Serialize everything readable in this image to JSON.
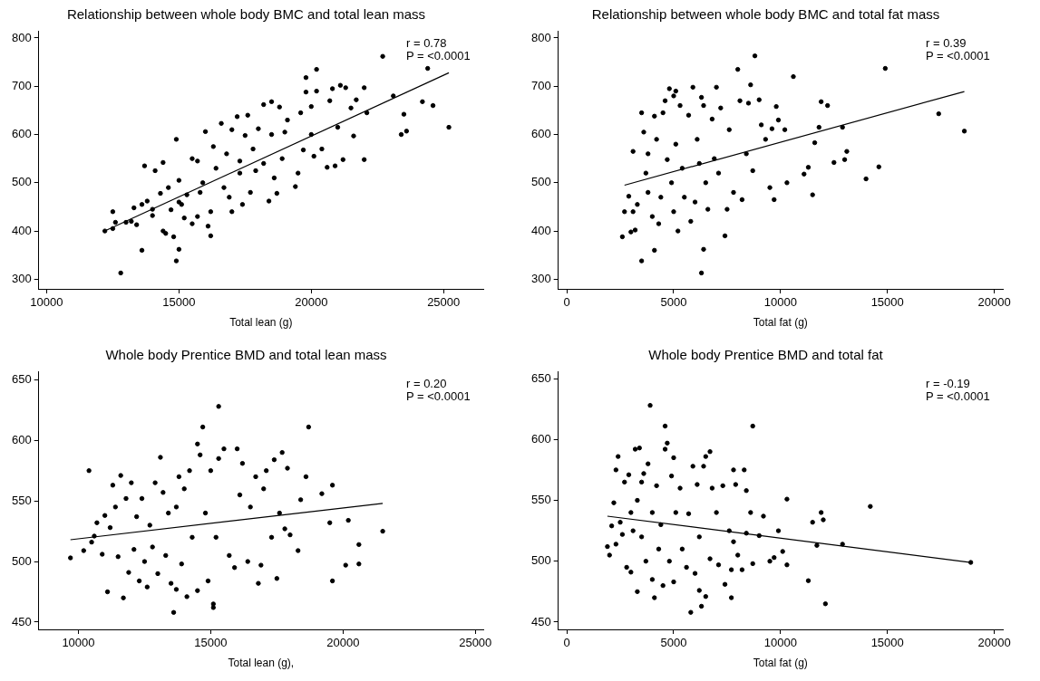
{
  "chart_data": [
    {
      "type": "scatter",
      "title": "Relationship between whole body BMC and total lean mass",
      "xlabel": "Total lean (g)",
      "xlim": [
        9700,
        26500
      ],
      "xticks": [
        10000,
        15000,
        20000,
        25000
      ],
      "ylim": [
        280,
        815
      ],
      "yticks": [
        300,
        400,
        500,
        600,
        700,
        800
      ],
      "marker": "circle",
      "annotations": [
        "r = 0.78",
        "P = <0.0001"
      ],
      "series": [
        {
          "color": "#000000",
          "x": [
            12200,
            12500,
            12500,
            12600,
            12800,
            13000,
            13200,
            13300,
            13400,
            13600,
            13700,
            13600,
            13800,
            14000,
            14000,
            14100,
            14300,
            14400,
            14400,
            14500,
            14600,
            14700,
            14800,
            14900,
            15000,
            14900,
            15000,
            15000,
            15100,
            15200,
            15300,
            15500,
            15500,
            15700,
            15700,
            15800,
            15900,
            16000,
            16100,
            16200,
            16300,
            16200,
            16400,
            16600,
            16700,
            16800,
            16900,
            17000,
            17000,
            17200,
            17300,
            17300,
            17400,
            17500,
            17600,
            17700,
            17800,
            17900,
            18000,
            18200,
            18200,
            18400,
            18500,
            18500,
            18600,
            18700,
            18800,
            18900,
            19000,
            19100,
            19400,
            19500,
            19600,
            19700,
            19800,
            19800,
            20000,
            20000,
            20100,
            20200,
            20200,
            20400,
            20600,
            20700,
            20800,
            20900,
            21000,
            21100,
            21200,
            21300,
            21500,
            21600,
            21700,
            22000,
            22000,
            22100,
            22700,
            23100,
            23400,
            23500,
            23600,
            24200,
            24400,
            24600,
            25200
          ],
          "values": [
            400,
            405,
            440,
            418,
            313,
            418,
            420,
            448,
            413,
            360,
            535,
            455,
            462,
            445,
            432,
            525,
            478,
            542,
            400,
            395,
            490,
            444,
            388,
            590,
            362,
            338,
            505,
            460,
            455,
            427,
            475,
            415,
            550,
            430,
            545,
            480,
            500,
            606,
            410,
            390,
            575,
            440,
            530,
            623,
            490,
            560,
            470,
            440,
            610,
            637,
            520,
            545,
            455,
            598,
            640,
            480,
            570,
            525,
            612,
            540,
            662,
            462,
            600,
            668,
            510,
            478,
            657,
            550,
            605,
            630,
            492,
            520,
            645,
            568,
            688,
            718,
            658,
            600,
            555,
            735,
            690,
            570,
            532,
            670,
            695,
            535,
            615,
            702,
            548,
            697,
            655,
            597,
            672,
            548,
            697,
            645,
            762,
            680,
            600,
            642,
            607,
            668,
            737,
            660,
            615
          ]
        },
        {
          "type": "line",
          "color": "#000000",
          "marker": "none",
          "x": [
            12200,
            25200
          ],
          "values": [
            400,
            728
          ]
        }
      ]
    },
    {
      "type": "scatter",
      "title": "Relationship between whole body BMC and total fat mass",
      "xlabel": "Total fat (g)",
      "xlim": [
        -400,
        20400
      ],
      "xticks": [
        0,
        5000,
        10000,
        15000,
        20000
      ],
      "ylim": [
        280,
        815
      ],
      "yticks": [
        300,
        400,
        500,
        600,
        700,
        800
      ],
      "marker": "circle",
      "annotations": [
        "r = 0.39",
        "P = <0.0001"
      ],
      "series": [
        {
          "color": "#000000",
          "x": [
            2600,
            2700,
            2900,
            3000,
            3100,
            3100,
            3200,
            3300,
            3500,
            3500,
            3600,
            3700,
            3800,
            3800,
            4000,
            4100,
            4100,
            4200,
            4300,
            4400,
            4500,
            4600,
            4700,
            4800,
            4900,
            5000,
            5000,
            5100,
            5100,
            5200,
            5300,
            5400,
            5500,
            5700,
            5800,
            5900,
            6000,
            6100,
            6200,
            6300,
            6300,
            6400,
            6400,
            6500,
            6600,
            6800,
            6900,
            7000,
            7100,
            7200,
            7400,
            7500,
            7600,
            7800,
            8000,
            8100,
            8200,
            8400,
            8500,
            8600,
            8700,
            8800,
            9000,
            9100,
            9300,
            9500,
            9600,
            9700,
            9800,
            9900,
            10200,
            10300,
            10600,
            11100,
            11300,
            11500,
            11600,
            11800,
            11900,
            12200,
            12500,
            12900,
            13000,
            13100,
            14000,
            14600,
            14900,
            17400,
            18600
          ],
          "values": [
            388,
            440,
            472,
            398,
            440,
            565,
            402,
            455,
            338,
            645,
            605,
            520,
            480,
            560,
            430,
            360,
            638,
            590,
            415,
            470,
            645,
            670,
            548,
            695,
            500,
            680,
            440,
            690,
            580,
            400,
            660,
            530,
            470,
            640,
            420,
            698,
            460,
            590,
            540,
            677,
            313,
            362,
            660,
            500,
            445,
            632,
            550,
            698,
            520,
            655,
            390,
            445,
            610,
            480,
            735,
            670,
            465,
            560,
            665,
            703,
            525,
            763,
            672,
            620,
            590,
            490,
            612,
            465,
            658,
            630,
            610,
            500,
            720,
            518,
            532,
            475,
            583,
            615,
            668,
            660,
            542,
            615,
            548,
            565,
            508,
            533,
            737,
            643,
            607
          ]
        },
        {
          "type": "line",
          "color": "#000000",
          "marker": "none",
          "x": [
            2700,
            18600
          ],
          "values": [
            495,
            689
          ]
        }
      ]
    },
    {
      "type": "scatter",
      "title": "Whole body Prentice BMD and total lean mass",
      "xlabel": "Total lean (g),",
      "xlim": [
        8500,
        25300
      ],
      "xticks": [
        10000,
        15000,
        20000,
        25000
      ],
      "ylim": [
        444,
        657
      ],
      "yticks": [
        450,
        500,
        550,
        600,
        650
      ],
      "marker": "circle",
      "annotations": [
        "r = 0.20",
        "P = <0.0001"
      ],
      "series": [
        {
          "color": "#000000",
          "x": [
            9700,
            10200,
            10400,
            10500,
            10600,
            10700,
            10900,
            11000,
            11100,
            11200,
            11300,
            11400,
            11500,
            11600,
            11700,
            11800,
            11900,
            12000,
            12100,
            12200,
            12300,
            12400,
            12500,
            12600,
            12700,
            12800,
            12900,
            13000,
            13100,
            13200,
            13300,
            13400,
            13500,
            13600,
            13700,
            13700,
            13800,
            13900,
            14000,
            14100,
            14200,
            14300,
            14500,
            14500,
            14600,
            14700,
            14800,
            14900,
            15000,
            15100,
            15100,
            15200,
            15300,
            15300,
            15500,
            15700,
            15900,
            16000,
            16100,
            16200,
            16400,
            16500,
            16700,
            16800,
            16900,
            17000,
            17100,
            17300,
            17400,
            17500,
            17600,
            17700,
            17800,
            17900,
            18000,
            18300,
            18400,
            18600,
            18700,
            19200,
            19500,
            19600,
            19600,
            20100,
            20200,
            20600,
            20600,
            21500
          ],
          "values": [
            503,
            509,
            575,
            516,
            521,
            532,
            506,
            538,
            475,
            528,
            563,
            545,
            504,
            571,
            470,
            552,
            491,
            565,
            510,
            537,
            484,
            552,
            500,
            479,
            530,
            512,
            565,
            490,
            586,
            557,
            505,
            540,
            482,
            458,
            477,
            545,
            570,
            498,
            560,
            471,
            575,
            520,
            476,
            597,
            588,
            611,
            540,
            484,
            575,
            465,
            462,
            520,
            628,
            585,
            593,
            505,
            495,
            593,
            555,
            581,
            500,
            545,
            570,
            482,
            497,
            560,
            575,
            520,
            584,
            486,
            540,
            590,
            527,
            577,
            522,
            509,
            551,
            570,
            611,
            556,
            532,
            484,
            563,
            497,
            534,
            498,
            514,
            525
          ]
        },
        {
          "type": "line",
          "color": "#000000",
          "marker": "none",
          "x": [
            9700,
            21500
          ],
          "values": [
            518,
            548
          ]
        }
      ]
    },
    {
      "type": "scatter",
      "title": "Whole body Prentice BMD and total fat",
      "xlabel": "Total fat (g)",
      "xlim": [
        -400,
        20400
      ],
      "xticks": [
        0,
        5000,
        10000,
        15000,
        20000
      ],
      "ylim": [
        444,
        656
      ],
      "yticks": [
        450,
        500,
        550,
        600,
        650
      ],
      "marker": "circle",
      "annotations": [
        "r = -0.19",
        "P = <0.0001"
      ],
      "series": [
        {
          "color": "#000000",
          "x": [
            1900,
            2000,
            2100,
            2200,
            2300,
            2300,
            2400,
            2500,
            2600,
            2700,
            2800,
            2900,
            3000,
            3000,
            3100,
            3200,
            3300,
            3300,
            3400,
            3500,
            3500,
            3600,
            3700,
            3800,
            3900,
            4000,
            4000,
            4100,
            4200,
            4300,
            4400,
            4500,
            4600,
            4600,
            4700,
            4800,
            4900,
            5000,
            5000,
            5100,
            5300,
            5400,
            5600,
            5700,
            5800,
            5900,
            6000,
            6100,
            6200,
            6200,
            6300,
            6400,
            6500,
            6500,
            6700,
            6700,
            6800,
            7000,
            7100,
            7300,
            7400,
            7600,
            7700,
            7700,
            7800,
            7800,
            7900,
            8000,
            8200,
            8300,
            8400,
            8400,
            8600,
            8700,
            8700,
            9000,
            9200,
            9500,
            9700,
            9900,
            10100,
            10300,
            10300,
            11300,
            11500,
            11700,
            11900,
            12000,
            12100,
            12900,
            14200,
            18900
          ],
          "values": [
            512,
            505,
            529,
            548,
            514,
            575,
            586,
            532,
            522,
            565,
            495,
            571,
            491,
            540,
            525,
            592,
            550,
            475,
            593,
            520,
            565,
            572,
            500,
            580,
            628,
            540,
            485,
            470,
            562,
            510,
            530,
            480,
            611,
            592,
            597,
            500,
            570,
            585,
            483,
            540,
            560,
            510,
            495,
            539,
            458,
            578,
            490,
            563,
            476,
            520,
            463,
            578,
            586,
            471,
            590,
            502,
            560,
            540,
            497,
            562,
            481,
            525,
            493,
            470,
            575,
            516,
            563,
            505,
            493,
            575,
            523,
            558,
            540,
            498,
            611,
            521,
            537,
            500,
            503,
            525,
            508,
            497,
            551,
            484,
            532,
            513,
            540,
            534,
            465,
            514,
            545,
            499
          ]
        },
        {
          "type": "line",
          "color": "#000000",
          "marker": "none",
          "x": [
            1900,
            18900
          ],
          "values": [
            537,
            499
          ]
        }
      ]
    }
  ]
}
